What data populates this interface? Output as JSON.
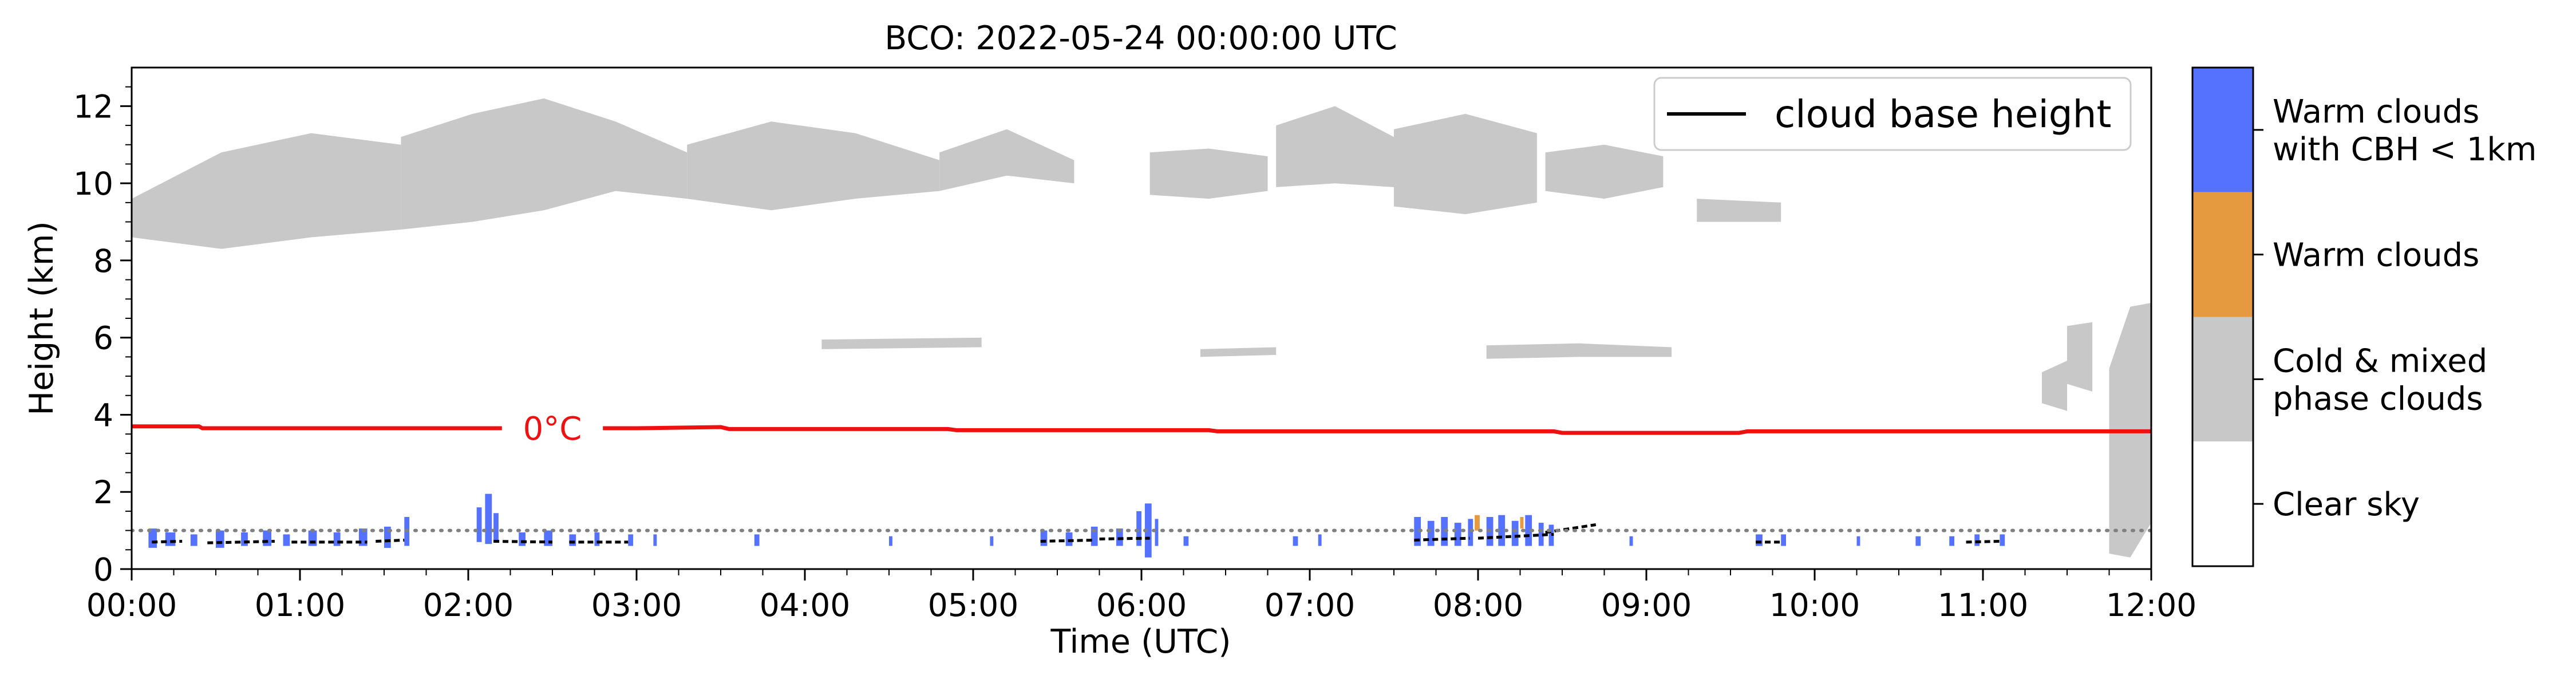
{
  "chart_data": {
    "type": "heatmap",
    "title": "BCO: 2022-05-24 00:00:00 UTC",
    "xlabel": "Time (UTC)",
    "ylabel": "Height (km)",
    "xlim": [
      0,
      12
    ],
    "ylim": [
      0,
      13
    ],
    "x_ticks": [
      "00:00",
      "01:00",
      "02:00",
      "03:00",
      "04:00",
      "05:00",
      "06:00",
      "07:00",
      "08:00",
      "09:00",
      "10:00",
      "11:00",
      "12:00"
    ],
    "y_ticks": [
      0,
      2,
      4,
      6,
      8,
      10,
      12
    ],
    "legend": {
      "label": "cloud base height",
      "placement": "top-right",
      "color": "#000000"
    },
    "freezing_level": {
      "label": "0°C",
      "color": "#ee1111",
      "points": [
        [
          0,
          3.7
        ],
        [
          0.4,
          3.7
        ],
        [
          0.42,
          3.65
        ],
        [
          3.0,
          3.65
        ],
        [
          3.5,
          3.68
        ],
        [
          3.55,
          3.63
        ],
        [
          4.85,
          3.63
        ],
        [
          4.9,
          3.6
        ],
        [
          6.4,
          3.6
        ],
        [
          6.45,
          3.57
        ],
        [
          8.45,
          3.57
        ],
        [
          8.5,
          3.53
        ],
        [
          9.55,
          3.53
        ],
        [
          9.6,
          3.57
        ],
        [
          12,
          3.57
        ]
      ]
    },
    "threshold_line": {
      "height_km": 1.0,
      "style": "dotted",
      "color": "#808080"
    },
    "colorbar": {
      "categories": [
        {
          "label_lines": [
            "Warm clouds",
            " with CBH < 1km"
          ],
          "color": "#5572ff"
        },
        {
          "label_lines": [
            "Warm clouds"
          ],
          "color": "#e69a40"
        },
        {
          "label_lines": [
            "Cold & mixed",
            "phase clouds"
          ],
          "color": "#c8c8c8"
        },
        {
          "label_lines": [
            "Clear sky"
          ],
          "color": "#ffffff"
        }
      ]
    },
    "cold_cloud_regions": [
      {
        "x": [
          0.0,
          1.6
        ],
        "ybot": [
          8.6,
          8.3,
          8.6,
          8.8
        ],
        "ytop": [
          9.6,
          10.8,
          11.3,
          11.0
        ]
      },
      {
        "x": [
          1.6,
          3.3
        ],
        "ybot": [
          8.8,
          9.0,
          9.3,
          9.8,
          9.6
        ],
        "ytop": [
          11.2,
          11.8,
          12.2,
          11.6,
          10.8
        ]
      },
      {
        "x": [
          3.3,
          4.8
        ],
        "ybot": [
          9.6,
          9.3,
          9.6,
          9.8
        ],
        "ytop": [
          11.0,
          11.6,
          11.3,
          10.6
        ]
      },
      {
        "x": [
          4.8,
          5.6
        ],
        "ybot": [
          9.8,
          10.2,
          10.0
        ],
        "ytop": [
          10.8,
          11.4,
          10.6
        ]
      },
      {
        "x": [
          6.05,
          6.75
        ],
        "ybot": [
          9.7,
          9.6,
          9.8
        ],
        "ytop": [
          10.8,
          10.9,
          10.7
        ]
      },
      {
        "x": [
          6.8,
          7.5
        ],
        "ybot": [
          9.9,
          10.0,
          9.9
        ],
        "ytop": [
          11.5,
          12.0,
          11.2
        ]
      },
      {
        "x": [
          7.5,
          8.35
        ],
        "ybot": [
          9.4,
          9.2,
          9.5
        ],
        "ytop": [
          11.4,
          11.8,
          11.3
        ]
      },
      {
        "x": [
          8.4,
          9.1
        ],
        "ybot": [
          9.8,
          9.6,
          9.9
        ],
        "ytop": [
          10.8,
          11.0,
          10.7
        ]
      },
      {
        "x": [
          9.3,
          9.8
        ],
        "ybot": [
          9.0,
          9.0
        ],
        "ytop": [
          9.6,
          9.5
        ]
      },
      {
        "x": [
          4.1,
          5.05
        ],
        "ybot": [
          5.7,
          5.75
        ],
        "ytop": [
          5.95,
          6.0
        ]
      },
      {
        "x": [
          6.35,
          6.8
        ],
        "ybot": [
          5.5,
          5.55
        ],
        "ytop": [
          5.7,
          5.75
        ]
      },
      {
        "x": [
          8.05,
          9.15
        ],
        "ybot": [
          5.45,
          5.5,
          5.5
        ],
        "ytop": [
          5.8,
          5.85,
          5.75
        ]
      },
      {
        "x": [
          11.35,
          11.5
        ],
        "ybot": [
          4.3,
          4.1
        ],
        "ytop": [
          5.1,
          5.4
        ]
      },
      {
        "x": [
          11.5,
          11.65
        ],
        "ybot": [
          4.8,
          4.6
        ],
        "ytop": [
          6.3,
          6.4
        ]
      },
      {
        "x": [
          11.75,
          12.0
        ],
        "ybot": [
          0.4,
          0.3,
          1.2
        ],
        "ytop": [
          5.2,
          6.8,
          6.9
        ]
      }
    ],
    "warm_low_clouds": [
      [
        0.1,
        0.05,
        0.55,
        1.05
      ],
      [
        0.2,
        0.06,
        0.6,
        0.95
      ],
      [
        0.35,
        0.04,
        0.6,
        0.9
      ],
      [
        0.5,
        0.05,
        0.55,
        1.0
      ],
      [
        0.65,
        0.04,
        0.6,
        0.95
      ],
      [
        0.78,
        0.05,
        0.6,
        1.0
      ],
      [
        0.9,
        0.04,
        0.6,
        0.9
      ],
      [
        1.05,
        0.05,
        0.6,
        1.0
      ],
      [
        1.2,
        0.04,
        0.6,
        0.95
      ],
      [
        1.35,
        0.05,
        0.6,
        1.05
      ],
      [
        1.5,
        0.04,
        0.55,
        1.1
      ],
      [
        1.62,
        0.03,
        0.6,
        1.35
      ],
      [
        2.05,
        0.03,
        0.7,
        1.6
      ],
      [
        2.1,
        0.04,
        0.65,
        1.95
      ],
      [
        2.15,
        0.03,
        0.7,
        1.45
      ],
      [
        2.3,
        0.04,
        0.6,
        0.95
      ],
      [
        2.45,
        0.05,
        0.6,
        1.0
      ],
      [
        2.6,
        0.04,
        0.6,
        0.9
      ],
      [
        2.75,
        0.03,
        0.6,
        0.95
      ],
      [
        2.95,
        0.03,
        0.6,
        0.9
      ],
      [
        3.1,
        0.02,
        0.6,
        0.9
      ],
      [
        3.7,
        0.03,
        0.6,
        0.9
      ],
      [
        4.5,
        0.02,
        0.6,
        0.85
      ],
      [
        5.1,
        0.02,
        0.6,
        0.85
      ],
      [
        5.4,
        0.04,
        0.6,
        1.0
      ],
      [
        5.55,
        0.04,
        0.6,
        0.95
      ],
      [
        5.7,
        0.04,
        0.6,
        1.1
      ],
      [
        5.85,
        0.04,
        0.6,
        1.05
      ],
      [
        5.97,
        0.03,
        0.6,
        1.5
      ],
      [
        6.02,
        0.04,
        0.3,
        1.7
      ],
      [
        6.08,
        0.02,
        0.6,
        1.3
      ],
      [
        6.25,
        0.03,
        0.6,
        0.85
      ],
      [
        6.9,
        0.03,
        0.6,
        0.85
      ],
      [
        7.05,
        0.02,
        0.6,
        0.9
      ],
      [
        7.62,
        0.04,
        0.6,
        1.35
      ],
      [
        7.7,
        0.04,
        0.6,
        1.25
      ],
      [
        7.78,
        0.04,
        0.6,
        1.35
      ],
      [
        7.86,
        0.04,
        0.6,
        1.2
      ],
      [
        7.94,
        0.03,
        0.6,
        1.3
      ],
      [
        8.05,
        0.04,
        0.6,
        1.35
      ],
      [
        8.12,
        0.04,
        0.6,
        1.4
      ],
      [
        8.2,
        0.04,
        0.6,
        1.25
      ],
      [
        8.28,
        0.04,
        0.6,
        1.4
      ],
      [
        8.36,
        0.03,
        0.6,
        1.2
      ],
      [
        8.42,
        0.03,
        0.6,
        1.15
      ],
      [
        8.9,
        0.02,
        0.6,
        0.85
      ],
      [
        9.65,
        0.04,
        0.6,
        0.9
      ],
      [
        9.8,
        0.03,
        0.6,
        0.9
      ],
      [
        10.25,
        0.02,
        0.6,
        0.85
      ],
      [
        10.6,
        0.03,
        0.6,
        0.85
      ],
      [
        10.8,
        0.03,
        0.6,
        0.85
      ],
      [
        10.95,
        0.03,
        0.6,
        0.9
      ],
      [
        11.1,
        0.03,
        0.6,
        0.9
      ]
    ],
    "warm_clouds": [
      [
        7.98,
        0.03,
        1.0,
        1.4
      ],
      [
        8.25,
        0.02,
        1.05,
        1.35
      ]
    ],
    "cloud_base_segments": [
      [
        0.12,
        0.7,
        0.3,
        0.72
      ],
      [
        0.45,
        0.68,
        0.85,
        0.72
      ],
      [
        0.95,
        0.7,
        1.4,
        0.7
      ],
      [
        1.45,
        0.72,
        1.62,
        0.75
      ],
      [
        2.15,
        0.72,
        2.5,
        0.7
      ],
      [
        2.6,
        0.7,
        2.95,
        0.7
      ],
      [
        5.4,
        0.72,
        5.72,
        0.75
      ],
      [
        5.75,
        0.78,
        6.05,
        0.8
      ],
      [
        7.62,
        0.75,
        7.95,
        0.8
      ],
      [
        8.0,
        0.8,
        8.45,
        0.9
      ],
      [
        8.4,
        0.95,
        8.7,
        1.15
      ],
      [
        9.65,
        0.7,
        9.8,
        0.7
      ],
      [
        10.9,
        0.7,
        11.1,
        0.72
      ]
    ]
  }
}
